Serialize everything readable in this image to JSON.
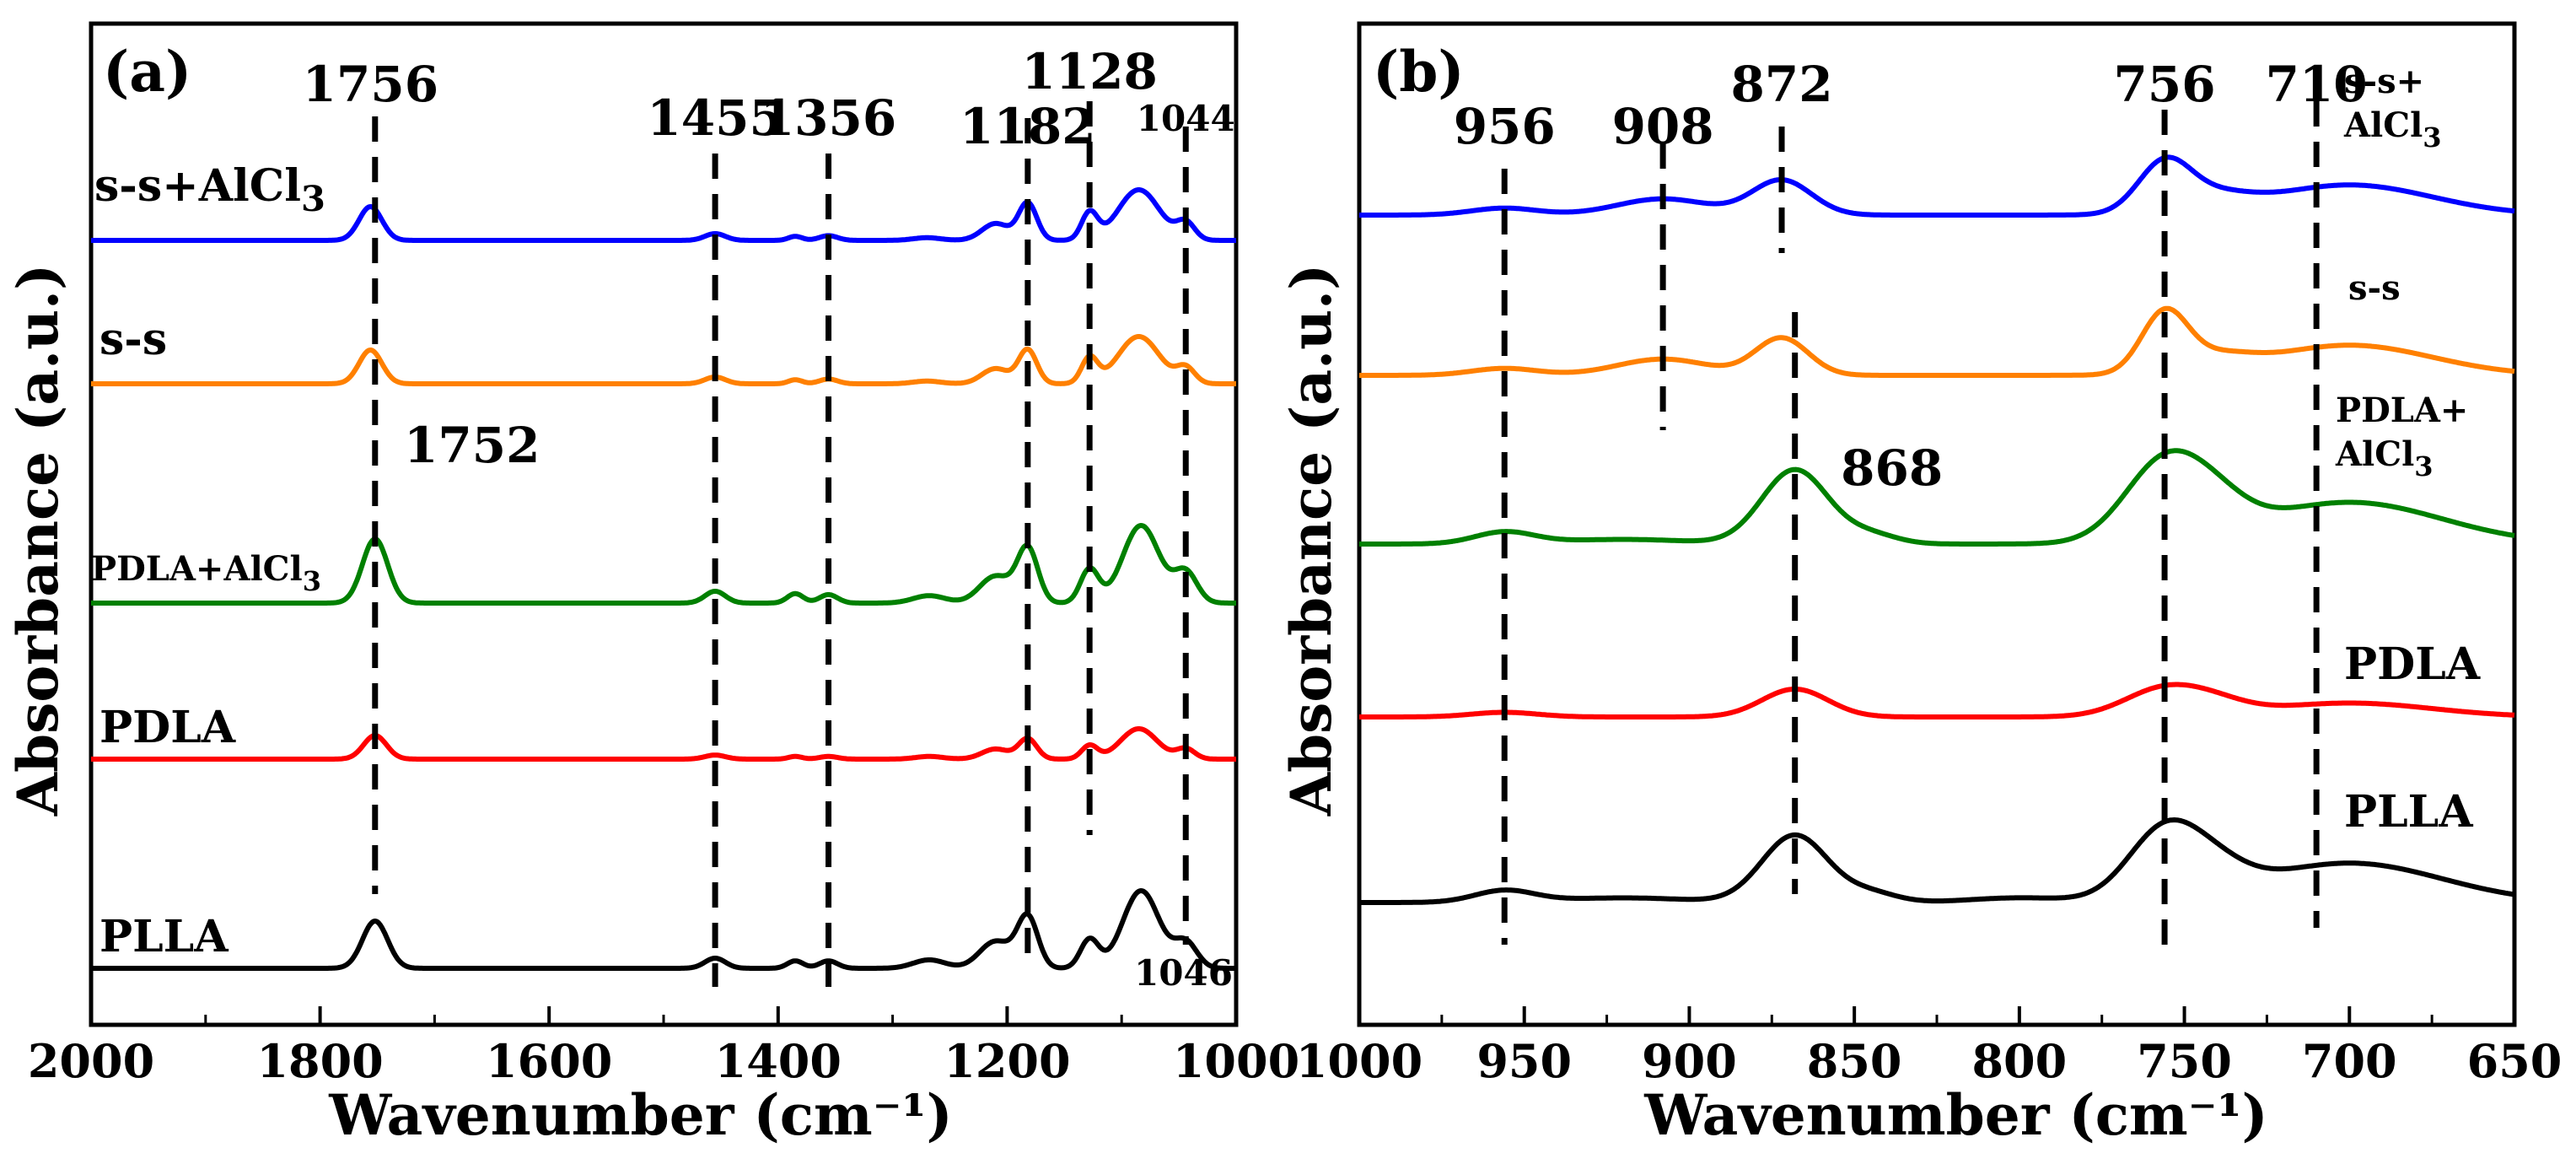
{
  "figure": {
    "y_axis_title": "Absorbance (a.u.)",
    "x_axis_title": "Wavenumber (cm⁻¹)"
  },
  "chart_data": [
    {
      "panel": "(a)",
      "type": "line",
      "xlabel": "Wavenumber (cm⁻¹)",
      "ylabel": "Absorbance (a.u.)",
      "xlim": [
        2000,
        1000
      ],
      "x_ticks": [
        2000,
        1800,
        1600,
        1400,
        1200,
        1000
      ],
      "y_ticks": [],
      "grid": false,
      "series": [
        {
          "name": "s-s+AlCl₃",
          "label_parts": [
            [
              "s-s+AlCl",
              "3"
            ]
          ],
          "color": "#0000ff",
          "offset": 4,
          "peaks": [
            [
              1756,
              1.0,
              10
            ],
            [
              1455,
              0.2,
              9
            ],
            [
              1385,
              0.12,
              6
            ],
            [
              1356,
              0.14,
              8
            ],
            [
              1270,
              0.08,
              12
            ],
            [
              1210,
              0.5,
              12
            ],
            [
              1182,
              1.1,
              8
            ],
            [
              1128,
              0.8,
              7
            ],
            [
              1085,
              1.5,
              18
            ],
            [
              1044,
              0.5,
              8
            ]
          ]
        },
        {
          "name": "s-s",
          "label_parts": [
            [
              "s-s",
              ""
            ]
          ],
          "color": "#ff8000",
          "offset": 3,
          "peaks": [
            [
              1756,
              1.0,
              10
            ],
            [
              1455,
              0.2,
              9
            ],
            [
              1385,
              0.12,
              6
            ],
            [
              1356,
              0.14,
              8
            ],
            [
              1270,
              0.08,
              12
            ],
            [
              1210,
              0.45,
              12
            ],
            [
              1182,
              1.0,
              8
            ],
            [
              1128,
              0.75,
              7
            ],
            [
              1085,
              1.4,
              18
            ],
            [
              1044,
              0.45,
              8
            ]
          ]
        },
        {
          "name": "PDLA+AlCl₃",
          "label_parts": [
            [
              "PDLA+AlCl",
              "3"
            ]
          ],
          "color": "#008000",
          "offset": 2,
          "peaks": [
            [
              1752,
              1.9,
              11
            ],
            [
              1455,
              0.35,
              9
            ],
            [
              1385,
              0.28,
              7
            ],
            [
              1356,
              0.25,
              8
            ],
            [
              1268,
              0.22,
              14
            ],
            [
              1210,
              0.8,
              14
            ],
            [
              1182,
              1.6,
              9
            ],
            [
              1128,
              1.0,
              8
            ],
            [
              1083,
              2.3,
              16
            ],
            [
              1044,
              0.9,
              10
            ]
          ]
        },
        {
          "name": "PDLA",
          "label_parts": [
            [
              "PDLA",
              ""
            ]
          ],
          "color": "#ff0000",
          "offset": 1,
          "peaks": [
            [
              1752,
              0.7,
              10
            ],
            [
              1455,
              0.12,
              9
            ],
            [
              1385,
              0.08,
              6
            ],
            [
              1356,
              0.08,
              8
            ],
            [
              1268,
              0.08,
              12
            ],
            [
              1210,
              0.3,
              12
            ],
            [
              1182,
              0.6,
              8
            ],
            [
              1128,
              0.4,
              7
            ],
            [
              1085,
              0.9,
              16
            ],
            [
              1044,
              0.3,
              8
            ]
          ]
        },
        {
          "name": "PLLA",
          "label_parts": [
            [
              "PLLA",
              ""
            ]
          ],
          "color": "#000000",
          "offset": 0,
          "peaks": [
            [
              1752,
              1.4,
              11
            ],
            [
              1455,
              0.3,
              9
            ],
            [
              1385,
              0.22,
              7
            ],
            [
              1356,
              0.22,
              8
            ],
            [
              1268,
              0.25,
              14
            ],
            [
              1210,
              0.8,
              14
            ],
            [
              1182,
              1.5,
              9
            ],
            [
              1128,
              0.85,
              8
            ],
            [
              1083,
              2.3,
              16
            ],
            [
              1044,
              0.75,
              10
            ]
          ]
        }
      ],
      "annotations": [
        {
          "text": "1756",
          "x": 1756,
          "size": "large"
        },
        {
          "text": "1455",
          "x": 1455,
          "size": "large"
        },
        {
          "text": "1356",
          "x": 1356,
          "size": "large"
        },
        {
          "text": "1182",
          "x": 1182,
          "size": "large"
        },
        {
          "text": "1128",
          "x": 1128,
          "size": "large"
        },
        {
          "text": "1044",
          "x": 1044,
          "size": "small"
        },
        {
          "text": "1752",
          "x": 1752,
          "size": "large"
        },
        {
          "text": "1046",
          "x": 1046,
          "size": "small"
        }
      ]
    },
    {
      "panel": "(b)",
      "type": "line",
      "xlabel": "Wavenumber (cm⁻¹)",
      "ylabel": "Absorbance (a.u.)",
      "xlim": [
        1000,
        650
      ],
      "x_ticks": [
        1000,
        950,
        900,
        850,
        800,
        750,
        700,
        650
      ],
      "y_ticks": [],
      "grid": false,
      "series": [
        {
          "name": "s-s+AlCl₃",
          "label_parts": [
            [
              "s-s+",
              ""
            ],
            [
              "AlCl",
              "3"
            ]
          ],
          "color": "#0000ff",
          "offset": 4,
          "peaks": [
            [
              956,
              0.15,
              10
            ],
            [
              908,
              0.35,
              14
            ],
            [
              872,
              0.75,
              9
            ],
            [
              756,
              1.1,
              8
            ],
            [
              740,
              0.3,
              10
            ],
            [
              700,
              0.65,
              25
            ]
          ]
        },
        {
          "name": "s-s",
          "label_parts": [
            [
              "s-s",
              ""
            ]
          ],
          "color": "#ff8000",
          "offset": 3,
          "peaks": [
            [
              956,
              0.15,
              10
            ],
            [
              908,
              0.35,
              14
            ],
            [
              872,
              0.8,
              8
            ],
            [
              756,
              1.3,
              7
            ],
            [
              740,
              0.3,
              10
            ],
            [
              700,
              0.65,
              25
            ]
          ]
        },
        {
          "name": "PDLA+AlCl₃",
          "label_parts": [
            [
              "PDLA+",
              ""
            ],
            [
              "AlCl",
              "3"
            ]
          ],
          "color": "#008000",
          "offset": 2,
          "peaks": [
            [
              956,
              0.25,
              9
            ],
            [
              920,
              0.1,
              20
            ],
            [
              868,
              1.6,
              10
            ],
            [
              845,
              0.2,
              8
            ],
            [
              756,
              1.7,
              12
            ],
            [
              740,
              0.5,
              10
            ],
            [
              700,
              0.9,
              28
            ]
          ]
        },
        {
          "name": "PDLA",
          "label_parts": [
            [
              "PDLA",
              ""
            ]
          ],
          "color": "#ff0000",
          "offset": 1,
          "peaks": [
            [
              956,
              0.1,
              10
            ],
            [
              868,
              0.6,
              10
            ],
            [
              756,
              0.6,
              12
            ],
            [
              740,
              0.2,
              10
            ],
            [
              700,
              0.3,
              25
            ]
          ]
        },
        {
          "name": "PLLA",
          "label_parts": [
            [
              "PLLA",
              ""
            ]
          ],
          "color": "#000000",
          "offset": 0,
          "peaks": [
            [
              956,
              0.25,
              9
            ],
            [
              920,
              0.1,
              20
            ],
            [
              868,
              1.45,
              10
            ],
            [
              845,
              0.2,
              8
            ],
            [
              800,
              0.1,
              15
            ],
            [
              756,
              1.5,
              11
            ],
            [
              740,
              0.45,
              10
            ],
            [
              700,
              0.85,
              28
            ]
          ]
        }
      ],
      "annotations": [
        {
          "text": "956",
          "x": 956,
          "size": "large"
        },
        {
          "text": "908",
          "x": 908,
          "size": "large"
        },
        {
          "text": "872",
          "x": 872,
          "size": "large"
        },
        {
          "text": "756",
          "x": 756,
          "size": "large"
        },
        {
          "text": "710",
          "x": 710,
          "size": "large"
        },
        {
          "text": "868",
          "x": 868,
          "size": "large"
        }
      ]
    }
  ]
}
